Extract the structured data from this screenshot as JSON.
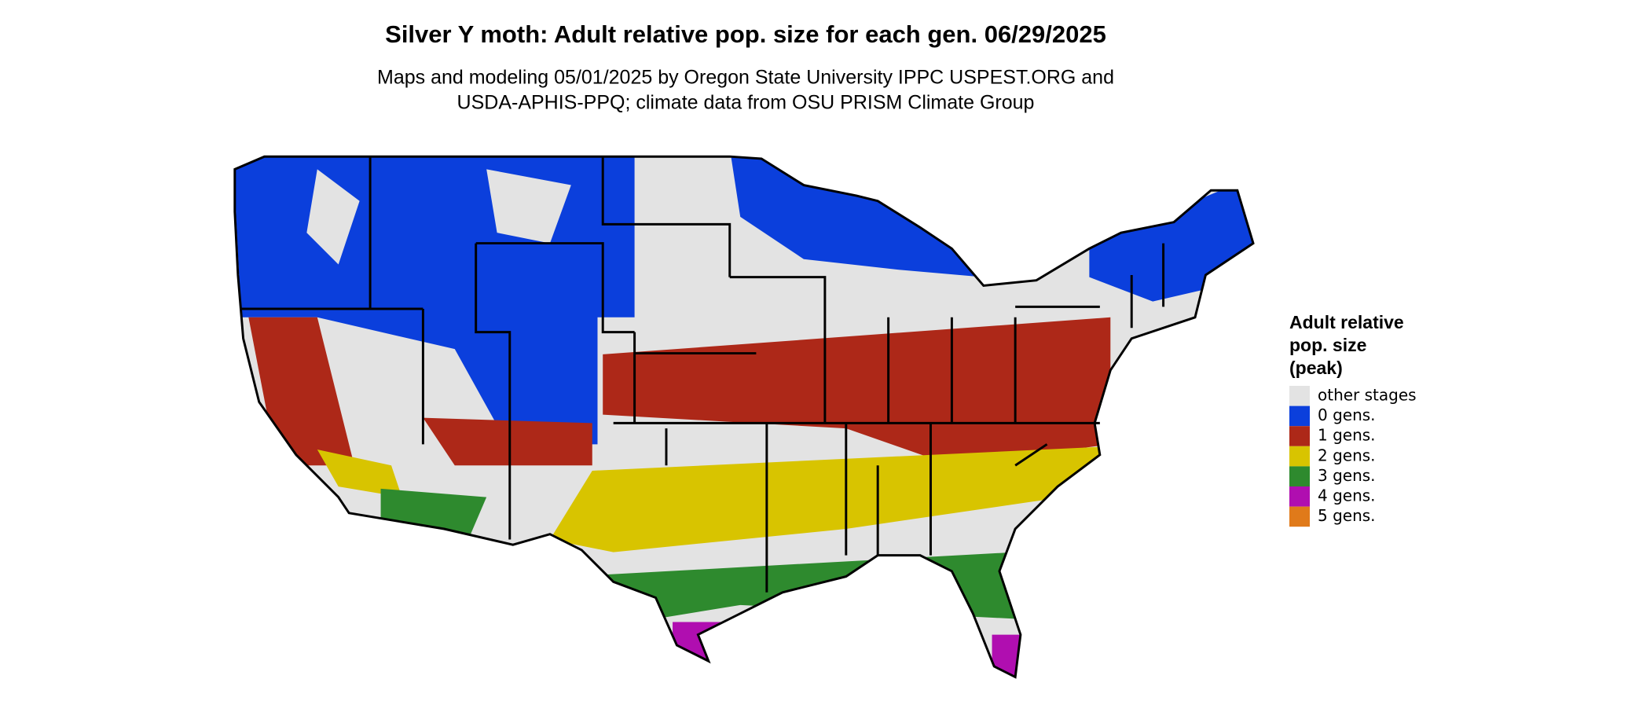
{
  "header": {
    "title": "Silver Y moth: Adult relative pop. size for each gen. 06/29/2025",
    "subtitle": [
      "Maps and modeling 05/01/2025 by Oregon State University IPPC USPEST.ORG and",
      "USDA-APHIS-PPQ; climate data from OSU PRISM Climate Group"
    ]
  },
  "legend": {
    "title": [
      "Adult relative",
      "pop. size",
      "(peak)"
    ],
    "items": [
      {
        "label": "other stages",
        "color": "#e3e3e3"
      },
      {
        "label": "0 gens.",
        "color": "#0b3fdc"
      },
      {
        "label": "1 gens.",
        "color": "#ad2818"
      },
      {
        "label": "2 gens.",
        "color": "#d8c400"
      },
      {
        "label": "3 gens.",
        "color": "#2e8a2e"
      },
      {
        "label": "4 gens.",
        "color": "#b00eb0"
      },
      {
        "label": "5 gens.",
        "color": "#e07a1a"
      }
    ]
  }
}
